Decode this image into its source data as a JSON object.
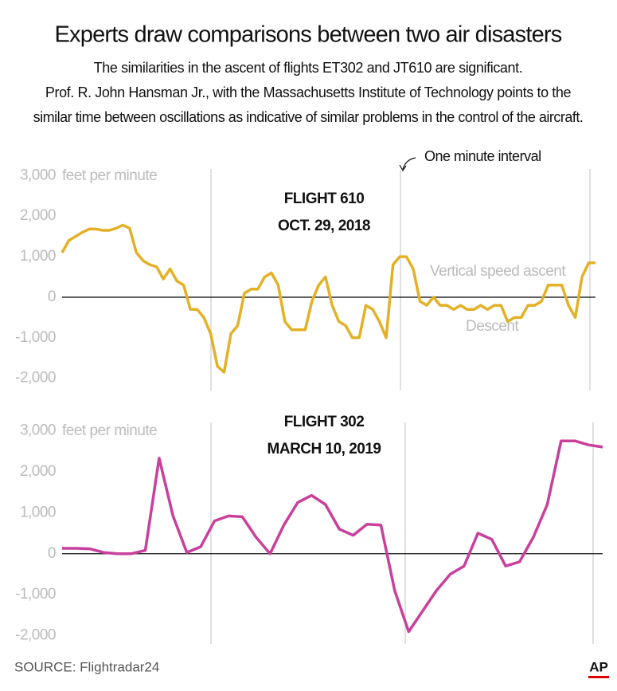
{
  "title": "Experts draw comparisons between two air disasters",
  "subtitle": [
    "The similarities in the ascent of flights ET302 and JT610 are  significant.",
    "Prof. R. John Hansman Jr., with the  Massachusetts Institute of Technology points to the",
    "similar time between oscillations as indicative of similar problems in the control of the aircraft."
  ],
  "source": "SOURCE:  Flightradar24",
  "credit": "AP",
  "chart_data": [
    {
      "type": "line",
      "title": "FLIGHT 610",
      "subtitle": "OCT. 29, 2018",
      "color": "#e3b126",
      "annotations": [
        "feet per minute",
        "One minute interval",
        "Vertical speed ascent",
        "Descent"
      ],
      "values": [
        1100,
        1400,
        1500,
        1600,
        1680,
        1680,
        1650,
        1650,
        1700,
        1780,
        1700,
        1100,
        900,
        800,
        750,
        450,
        700,
        400,
        300,
        -300,
        -300,
        -500,
        -900,
        -1700,
        -1850,
        -900,
        -700,
        100,
        200,
        200,
        500,
        600,
        300,
        -600,
        -800,
        -800,
        -800,
        -100,
        300,
        500,
        -200,
        -600,
        -700,
        -1000,
        -1000,
        -200,
        -300,
        -600,
        -1000,
        800,
        1000,
        1000,
        700,
        -100,
        -200,
        0,
        -200,
        -200,
        -300,
        -200,
        -300,
        -300,
        -200,
        -300,
        -200,
        -200,
        -600,
        -500,
        -500,
        -200,
        -200,
        -100,
        300,
        300,
        300,
        -200,
        -500,
        500,
        850,
        850
      ],
      "ylim": [
        -2300,
        3300
      ],
      "yticks": [
        {
          "value": 3000,
          "label": "3,000"
        },
        {
          "value": 2000,
          "label": "2,000"
        },
        {
          "value": 1000,
          "label": "1,000"
        },
        0,
        {
          "value": -1000,
          "label": "-1,000"
        },
        {
          "value": -2000,
          "label": "-2,000"
        }
      ],
      "grid": false
    },
    {
      "type": "line",
      "title": "FLIGHT 302",
      "subtitle": "MARCH 10, 2019",
      "color": "#c8409c",
      "annotations": [
        "feet per minute"
      ],
      "values": [
        130,
        130,
        120,
        30,
        0,
        0,
        80,
        2330,
        920,
        30,
        170,
        800,
        920,
        900,
        400,
        0,
        700,
        1250,
        1420,
        1200,
        600,
        450,
        720,
        700,
        -900,
        -1900,
        -1400,
        -900,
        -500,
        -300,
        500,
        350,
        -300,
        -200,
        400,
        1200,
        2750,
        2750,
        2650,
        2600
      ],
      "ylim": [
        -2200,
        3200
      ],
      "yticks": [
        {
          "value": 3000,
          "label": "3,000"
        },
        {
          "value": 2000,
          "label": "2,000"
        },
        {
          "value": 1000,
          "label": "1,000"
        },
        0,
        {
          "value": -1000,
          "label": "-1,000"
        },
        {
          "value": -2000,
          "label": "-2,000"
        }
      ],
      "grid": false
    }
  ]
}
